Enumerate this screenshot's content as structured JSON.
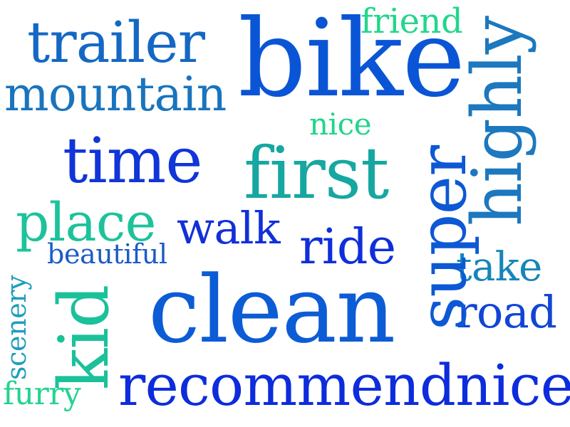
{
  "words": {
    "bike": "bike",
    "trailer": "trailer",
    "mountain": "mountain",
    "friend": "friend",
    "highly": "highly",
    "nice": "nice",
    "time": "time",
    "first": "first",
    "super": "super",
    "place": "place",
    "walk": "walk",
    "ride": "ride",
    "beautiful": "beautiful",
    "take": "take",
    "clean": "clean",
    "kid": "kid",
    "scenery": "scenery",
    "road": "road",
    "recommendnice": "recommendnice",
    "furry": "furry"
  },
  "colors": {
    "bike": "#0a55d6",
    "trailer": "#1468c4",
    "mountain": "#1a74bd",
    "friend": "#22d68c",
    "highly": "#1c78bf",
    "nice": "#21d58a",
    "time": "#1035d8",
    "first": "#16a7a0",
    "super": "#0d58d4",
    "place": "#1cc39a",
    "walk": "#1230d8",
    "ride": "#0f2edb",
    "beautiful": "#1c5bc8",
    "take": "#1686b8",
    "clean": "#0c5cd6",
    "kid": "#1bc199",
    "scenery": "#1f9ebc",
    "road": "#1145d6",
    "recommendnice": "#0d2cdc",
    "furry": "#23d38f"
  }
}
